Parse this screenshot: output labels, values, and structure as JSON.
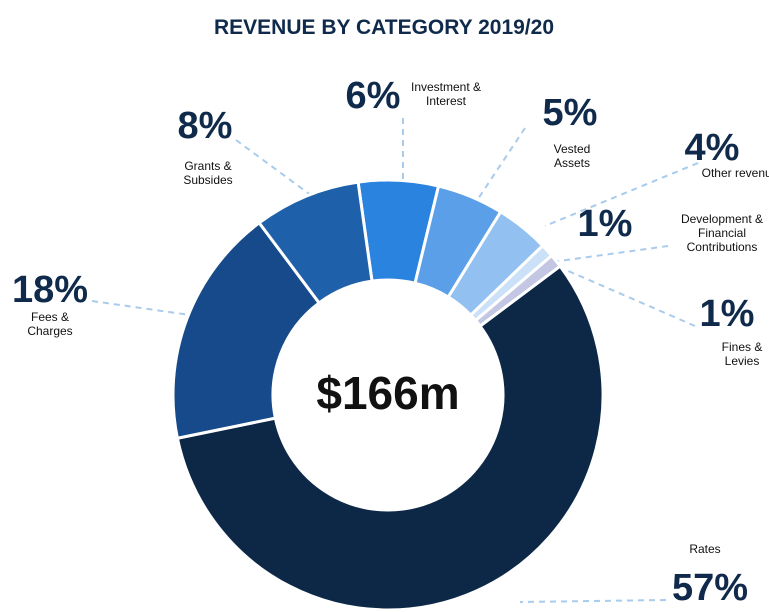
{
  "chart_data": {
    "type": "donut",
    "title": "REVENUE BY CATEGORY 2019/20",
    "center_label": "$166m",
    "categories": [
      "Investment & Interest",
      "Vested Assets",
      "Other revenue",
      "Development & Financial Contributions",
      "Fines & Levies",
      "Rates",
      "Fees & Charges",
      "Grants & Subsides"
    ],
    "values": [
      6,
      5,
      4,
      1,
      1,
      57,
      18,
      8
    ],
    "value_labels": [
      "6%",
      "5%",
      "4%",
      "1%",
      "1%",
      "57%",
      "18%",
      "8%"
    ],
    "colors": [
      "#2b83e0",
      "#5b9fe8",
      "#92c1f1",
      "#cbe1f8",
      "#c4c7e3",
      "#0d2847",
      "#174a8a",
      "#1e60aa"
    ]
  }
}
